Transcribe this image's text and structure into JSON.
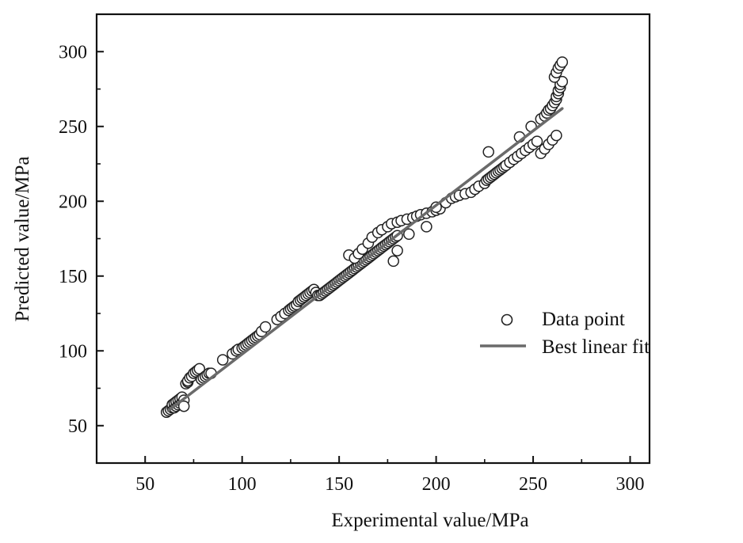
{
  "chart_data": {
    "type": "scatter",
    "xlabel": "Experimental value/MPa",
    "ylabel": "Predicted value/MPa",
    "xlim": [
      25,
      310
    ],
    "ylim": [
      25,
      325
    ],
    "xticks": [
      50,
      100,
      150,
      200,
      250,
      300
    ],
    "yticks": [
      50,
      100,
      150,
      200,
      250,
      300
    ],
    "grid": false,
    "legend": {
      "placement": "right-middle",
      "entries": [
        {
          "label": "Data point",
          "marker": "open-circle"
        },
        {
          "label": "Best linear fit",
          "marker": "line"
        }
      ]
    },
    "series": [
      {
        "name": "Data point",
        "kind": "scatter",
        "color": "#222222",
        "x": [
          61,
          62,
          63,
          64,
          64,
          65,
          65,
          66,
          66,
          67,
          67,
          68,
          68,
          69,
          69,
          70,
          70,
          71,
          72,
          72,
          73,
          74,
          75,
          76,
          77,
          78,
          79,
          80,
          81,
          82,
          83,
          84,
          90,
          95,
          97,
          98,
          100,
          101,
          102,
          103,
          104,
          105,
          106,
          107,
          108,
          109,
          110,
          112,
          118,
          120,
          122,
          124,
          125,
          126,
          127,
          128,
          129,
          130,
          131,
          132,
          133,
          134,
          135,
          136,
          137,
          138,
          139,
          140,
          141,
          142,
          143,
          144,
          145,
          146,
          147,
          148,
          149,
          150,
          151,
          152,
          153,
          154,
          155,
          156,
          157,
          158,
          159,
          160,
          161,
          162,
          163,
          164,
          165,
          166,
          167,
          168,
          169,
          170,
          171,
          172,
          173,
          174,
          175,
          176,
          177,
          178,
          179,
          180,
          155,
          158,
          160,
          162,
          165,
          167,
          170,
          172,
          175,
          177,
          180,
          182,
          185,
          188,
          190,
          192,
          195,
          198,
          200,
          202,
          178,
          180,
          186,
          195,
          200,
          205,
          208,
          210,
          212,
          215,
          218,
          220,
          222,
          225,
          226,
          227,
          228,
          229,
          230,
          231,
          232,
          233,
          234,
          235,
          236,
          238,
          240,
          242,
          244,
          246,
          248,
          250,
          252,
          227,
          243,
          249,
          254,
          256,
          257,
          258,
          259,
          260,
          261,
          262,
          262,
          263,
          263,
          264,
          264,
          265,
          261,
          262,
          263,
          264,
          265,
          254,
          256,
          258,
          260,
          262
        ],
        "y": [
          59,
          60,
          61,
          62,
          64,
          62,
          65,
          63,
          66,
          64,
          67,
          65,
          68,
          66,
          69,
          67,
          63,
          78,
          79,
          80,
          82,
          83,
          85,
          86,
          87,
          88,
          81,
          82,
          83,
          84,
          85,
          85,
          94,
          98,
          100,
          101,
          102,
          103,
          104,
          105,
          106,
          107,
          108,
          109,
          110,
          111,
          113,
          116,
          121,
          123,
          125,
          127,
          128,
          129,
          130,
          131,
          133,
          134,
          135,
          136,
          137,
          138,
          139,
          140,
          141,
          139,
          137,
          137,
          138,
          139,
          140,
          141,
          142,
          143,
          144,
          145,
          146,
          147,
          148,
          149,
          150,
          151,
          152,
          153,
          154,
          155,
          156,
          157,
          158,
          159,
          160,
          161,
          162,
          163,
          164,
          165,
          166,
          167,
          168,
          169,
          170,
          171,
          172,
          173,
          174,
          175,
          176,
          177,
          164,
          162,
          165,
          168,
          172,
          176,
          179,
          181,
          183,
          185,
          186,
          187,
          188,
          189,
          190,
          191,
          192,
          193,
          194,
          195,
          160,
          167,
          178,
          183,
          196,
          199,
          202,
          203,
          204,
          205,
          206,
          208,
          210,
          212,
          214,
          215,
          216,
          217,
          218,
          219,
          220,
          221,
          222,
          223,
          224,
          226,
          228,
          230,
          232,
          234,
          236,
          238,
          240,
          233,
          243,
          250,
          255,
          257,
          259,
          261,
          262,
          264,
          266,
          268,
          270,
          272,
          274,
          276,
          278,
          280,
          283,
          286,
          289,
          291,
          293,
          232,
          235,
          238,
          241,
          244
        ]
      },
      {
        "name": "Best linear fit",
        "kind": "line",
        "color": "#6a6a6a",
        "x": [
          62,
          265
        ],
        "y": [
          60,
          262
        ]
      }
    ]
  }
}
